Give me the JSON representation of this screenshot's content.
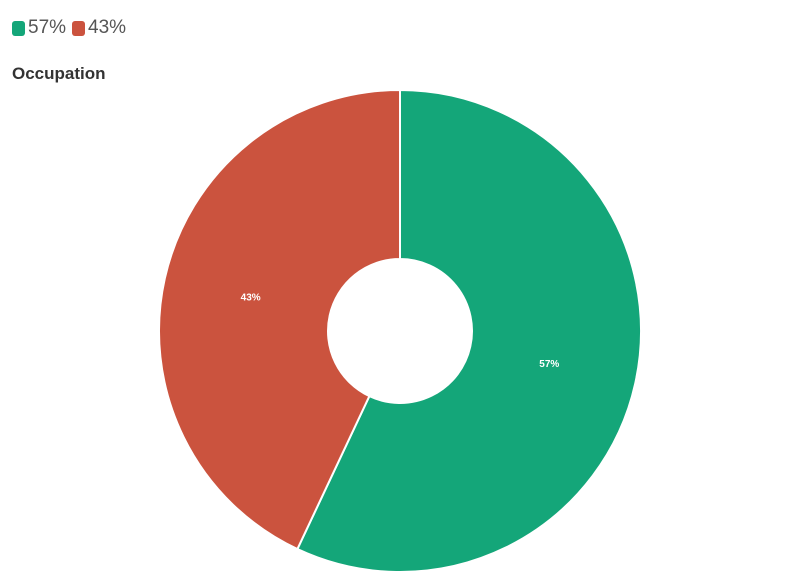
{
  "chart_data": {
    "type": "pie",
    "title": "Occupation",
    "donut": true,
    "legend_position": "top-left",
    "slices": [
      {
        "label": "57%",
        "value": 57,
        "color": "#14a679"
      },
      {
        "label": "43%",
        "value": 43,
        "color": "#cb533e"
      }
    ]
  }
}
